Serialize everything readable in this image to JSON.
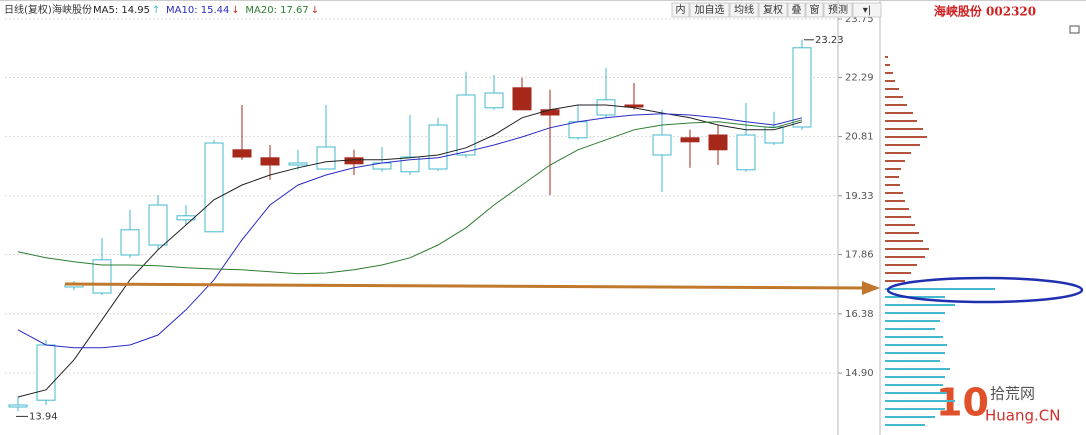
{
  "chart_data": {
    "type": "candlestick",
    "header": [
      "日线(复权)",
      "海峡股份"
    ],
    "toolbar": [
      "内",
      "加自选",
      "均线",
      "复权",
      "叠",
      "窗",
      "预测",
      "▾|"
    ],
    "panel_title": "海峡股份 002320",
    "annotations": [
      "23.23",
      "13.94"
    ],
    "watermark": [
      "10",
      "拾荒网",
      "Huang.CN"
    ],
    "categories": [
      null,
      null,
      null,
      null,
      null,
      null,
      null,
      null,
      null,
      null,
      null,
      null,
      null,
      null,
      null,
      null,
      null,
      null,
      null,
      null,
      null,
      null,
      null,
      null,
      null,
      null,
      null,
      null,
      null
    ],
    "open": [
      14.05,
      14.22,
      17.05,
      16.9,
      17.85,
      18.1,
      18.73,
      18.43,
      20.48,
      20.28,
      20.1,
      20.0,
      20.28,
      20.0,
      19.93,
      20.0,
      20.35,
      21.53,
      22.03,
      21.48,
      20.78,
      21.35,
      21.6,
      20.35,
      20.78,
      20.85,
      19.98,
      20.65,
      21.05
    ],
    "high": [
      14.3,
      15.73,
      17.2,
      18.27,
      18.98,
      19.35,
      19.1,
      20.73,
      21.6,
      20.6,
      20.48,
      21.6,
      20.48,
      20.55,
      21.35,
      21.28,
      22.43,
      22.35,
      22.28,
      21.98,
      21.6,
      22.53,
      22.15,
      21.48,
      20.98,
      21.1,
      21.65,
      21.43,
      23.23
    ],
    "low": [
      13.94,
      14.1,
      16.97,
      16.85,
      17.78,
      17.98,
      18.6,
      18.43,
      20.23,
      19.73,
      19.98,
      19.98,
      19.85,
      19.93,
      19.85,
      19.95,
      20.28,
      21.48,
      21.48,
      19.35,
      20.73,
      21.28,
      21.48,
      19.43,
      20.03,
      20.1,
      19.93,
      20.6,
      20.98
    ],
    "close": [
      14.1,
      15.6,
      17.1,
      17.73,
      18.48,
      19.1,
      18.83,
      20.65,
      20.3,
      20.1,
      20.15,
      20.55,
      20.13,
      20.15,
      20.3,
      21.1,
      21.85,
      21.9,
      21.48,
      21.35,
      21.18,
      21.73,
      21.55,
      20.85,
      20.68,
      20.48,
      20.85,
      21.05,
      23.03
    ],
    "up_color": "#43b8cf",
    "down_color": "#a5281b",
    "series": [
      {
        "label": "MA5: 14.95",
        "trend": "↑",
        "color": "#222222",
        "trend_color": "#43b8cf",
        "values": [
          14.3,
          14.48,
          15.23,
          16.23,
          17.23,
          17.98,
          18.6,
          19.23,
          19.6,
          19.85,
          20.03,
          20.18,
          20.23,
          20.23,
          20.28,
          20.35,
          20.53,
          20.85,
          21.28,
          21.48,
          21.6,
          21.6,
          21.53,
          21.4,
          21.28,
          21.1,
          20.98,
          20.98,
          21.18
        ]
      },
      {
        "label": "MA10: 15.44",
        "trend": "↓",
        "color": "#2b2bc4",
        "trend_color": "#c0392b",
        "values": [
          15.98,
          15.6,
          15.53,
          15.53,
          15.6,
          15.85,
          16.48,
          17.23,
          18.23,
          19.1,
          19.6,
          19.85,
          20.03,
          20.15,
          20.23,
          20.28,
          20.43,
          20.6,
          20.8,
          21.03,
          21.18,
          21.28,
          21.35,
          21.38,
          21.35,
          21.28,
          21.18,
          21.1,
          21.28
        ]
      },
      {
        "label": "MA20: 17.67",
        "trend": "↓",
        "color": "#2e7d32",
        "trend_color": "#c0392b",
        "values": [
          17.93,
          17.78,
          17.68,
          17.6,
          17.6,
          17.58,
          17.53,
          17.5,
          17.48,
          17.43,
          17.38,
          17.4,
          17.48,
          17.6,
          17.78,
          18.1,
          18.53,
          19.1,
          19.6,
          20.1,
          20.48,
          20.73,
          20.98,
          21.1,
          21.15,
          21.18,
          21.1,
          21.03,
          21.23
        ]
      }
    ],
    "ylim": [
      13.475,
      23.975
    ],
    "yticks": [
      {
        "value": 14.9,
        "label": "14.90"
      },
      16.38,
      17.86,
      19.33,
      20.81,
      22.29,
      23.75
    ],
    "grid": true,
    "profile_upper": {
      "color": "#b5523b",
      "prices": [
        22.8,
        22.6,
        22.4,
        22.2,
        22.0,
        21.8,
        21.6,
        21.4,
        21.2,
        21.0,
        20.8,
        20.6,
        20.4,
        20.2,
        20.0,
        19.8,
        19.6,
        19.4,
        19.2,
        19.0,
        18.8,
        18.6,
        18.4,
        18.2,
        18.0,
        17.8,
        17.6,
        17.4,
        17.2
      ],
      "values": [
        3,
        5,
        8,
        10,
        14,
        18,
        22,
        28,
        32,
        38,
        42,
        35,
        26,
        20,
        16,
        14,
        15,
        18,
        20,
        24,
        26,
        30,
        34,
        38,
        44,
        40,
        32,
        26,
        20
      ]
    },
    "profile_lower": {
      "color": "#43b8cf",
      "prices": [
        17.0,
        16.8,
        16.6,
        16.4,
        16.2,
        16.0,
        15.8,
        15.6,
        15.4,
        15.2,
        15.0,
        14.8,
        14.6,
        14.4,
        14.2,
        14.0,
        13.8,
        13.6
      ],
      "values": [
        110,
        60,
        70,
        60,
        55,
        50,
        58,
        62,
        60,
        55,
        65,
        60,
        58,
        62,
        70,
        60,
        50,
        40
      ]
    }
  }
}
